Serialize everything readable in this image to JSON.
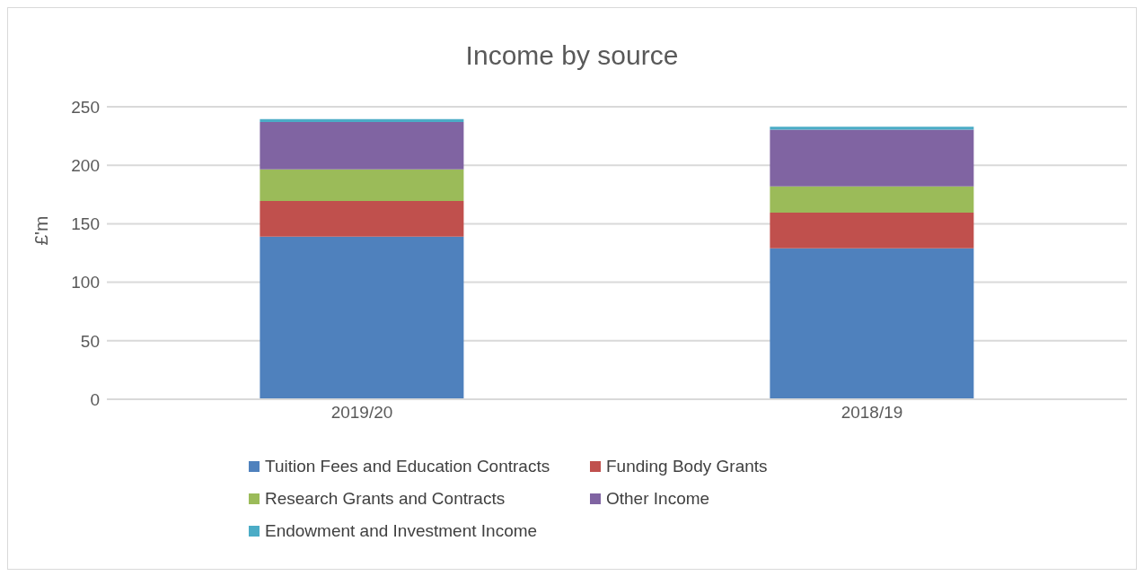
{
  "chart_data": {
    "type": "bar",
    "title": "Income by source",
    "ylabel": "£'m",
    "categories": [
      "2019/20",
      "2018/19"
    ],
    "stacked": true,
    "ylim": [
      0,
      250
    ],
    "yticks": [
      0,
      50,
      100,
      150,
      200,
      250
    ],
    "grid": "y",
    "legend": "bottom",
    "series": [
      {
        "name": "Tuition Fees and Education Contracts",
        "color": "#4f81bd",
        "values": [
          139,
          129
        ]
      },
      {
        "name": "Funding Body Grants",
        "color": "#c0504d",
        "values": [
          30.5,
          30.5
        ]
      },
      {
        "name": "Research Grants and Contracts",
        "color": "#9bbb59",
        "values": [
          27,
          22.5
        ]
      },
      {
        "name": "Other Income",
        "color": "#8064a2",
        "values": [
          40.5,
          48.5
        ]
      },
      {
        "name": "Endowment and Investment Income",
        "color": "#4bacc6",
        "values": [
          2.5,
          2.5
        ]
      }
    ]
  }
}
